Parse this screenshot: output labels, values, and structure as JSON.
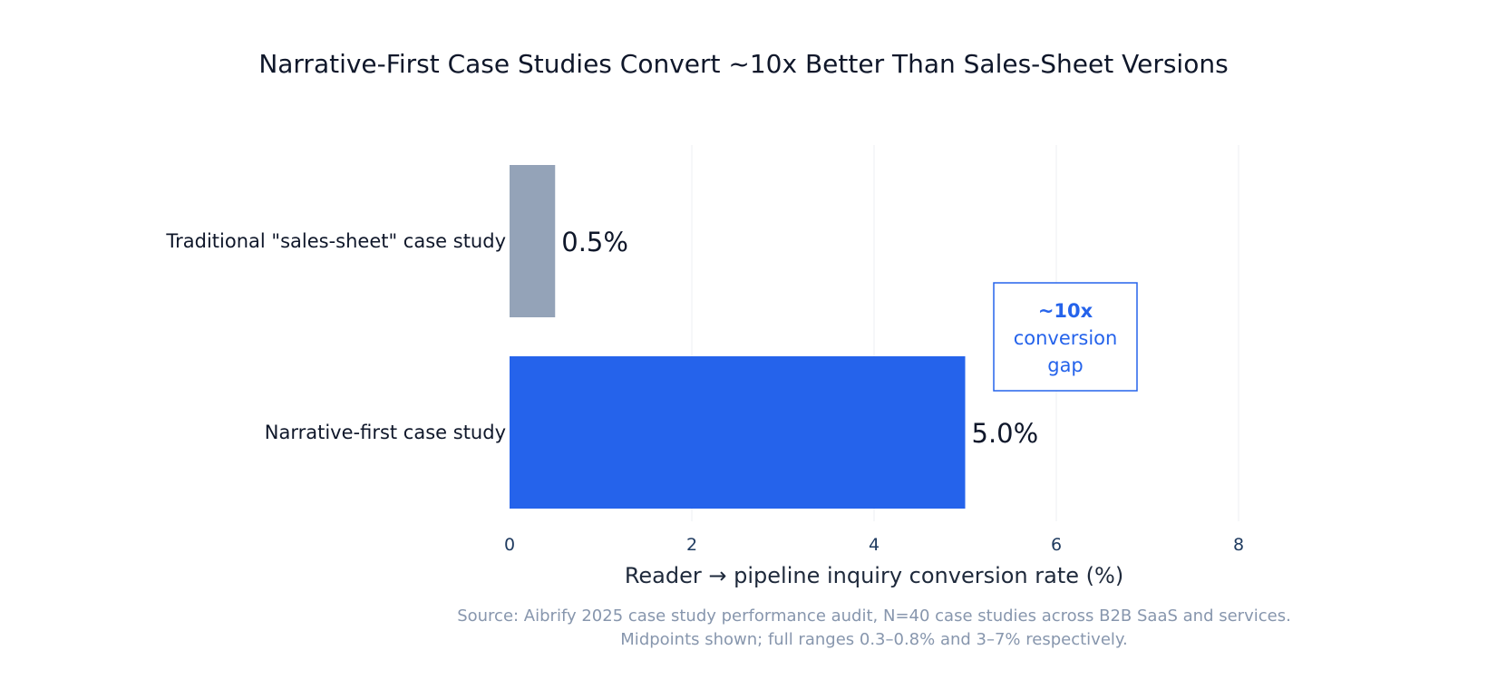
{
  "chart_data": {
    "type": "bar",
    "orientation": "horizontal",
    "title": "Narrative-First Case Studies Convert ~10x Better Than Sales-Sheet Versions",
    "categories": [
      "Traditional \"sales-sheet\" case study",
      "Narrative-first case study"
    ],
    "values": [
      0.5,
      5.0
    ],
    "data_labels": [
      "0.5%",
      "5.0%"
    ],
    "colors": [
      "#94a3b8",
      "#2563eb"
    ],
    "xlabel": "Reader → pipeline inquiry conversion rate (%)",
    "ylabel": "",
    "xlim": [
      0,
      8
    ],
    "xticks": [
      0,
      2,
      4,
      6,
      8
    ],
    "grid": true,
    "annotation": {
      "bold": "~10x",
      "lines": [
        "conversion",
        "gap"
      ],
      "color": "#2563eb"
    },
    "source": [
      "Source: Aibrify 2025 case study performance audit, N=40 case studies across B2B SaaS and services.",
      "Midpoints shown; full ranges 0.3–0.8% and 3–7% respectively."
    ]
  }
}
